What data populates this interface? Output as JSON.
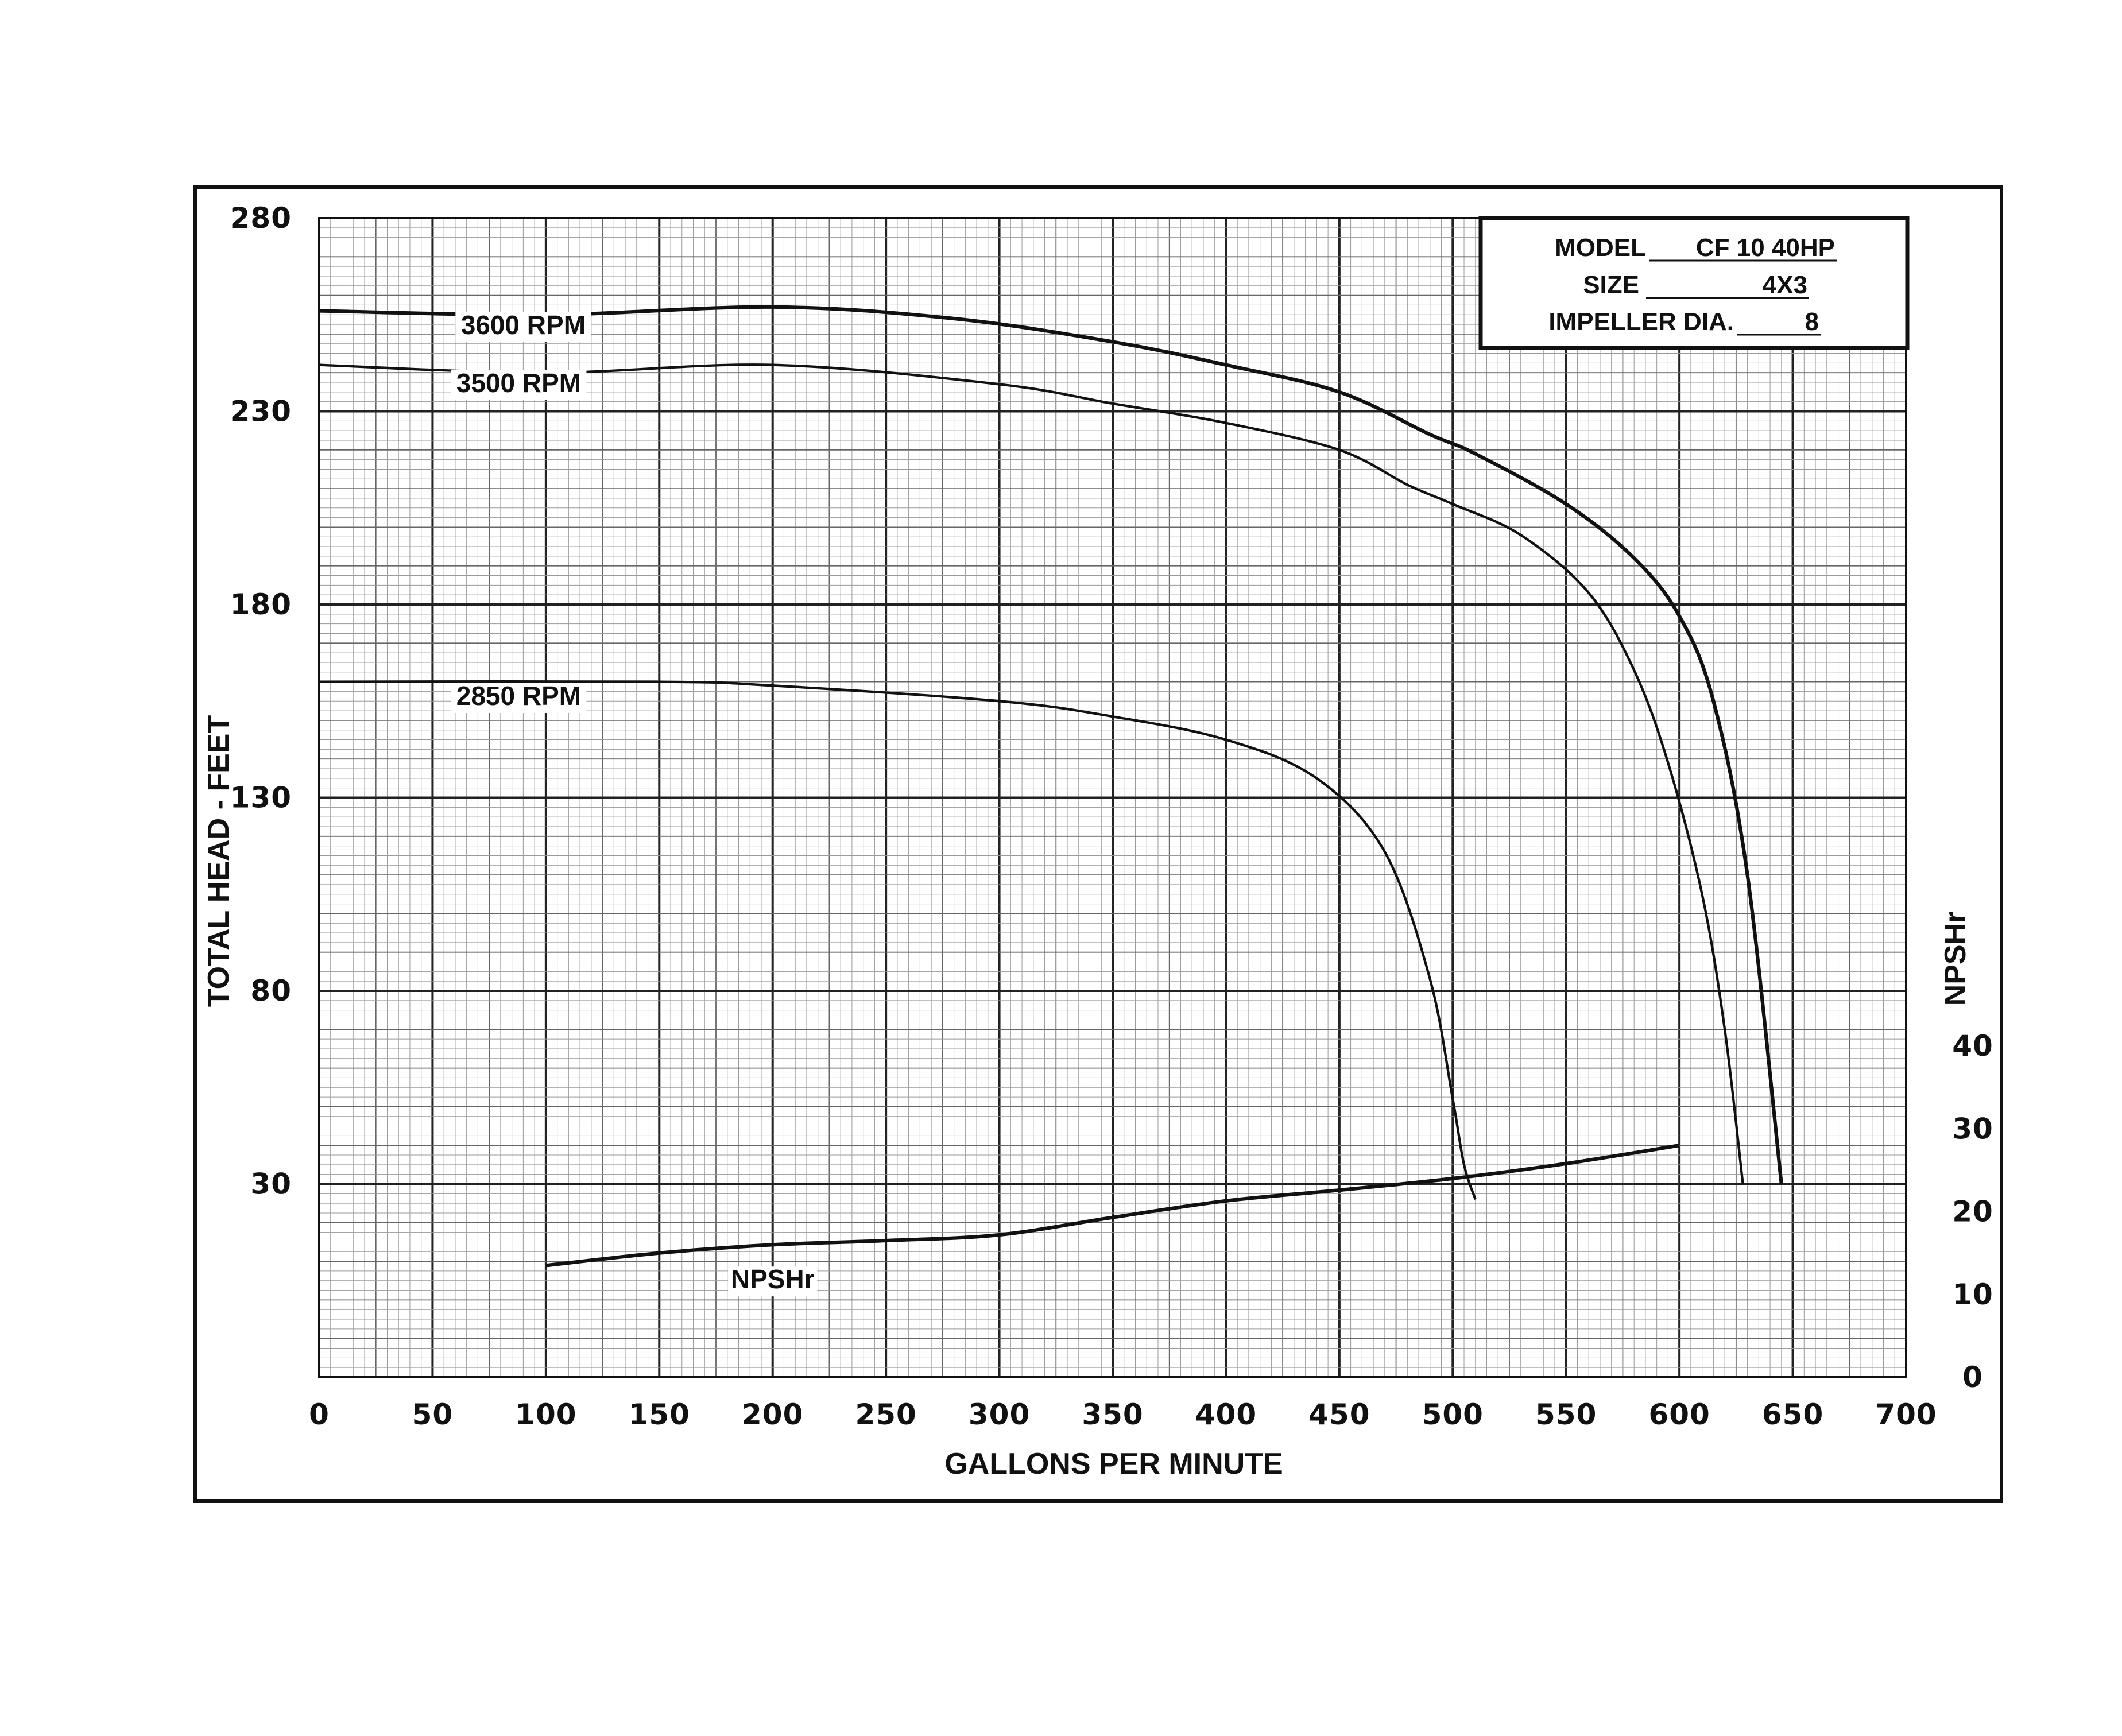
{
  "chart_data": {
    "type": "line",
    "xlabel": "GALLONS PER MINUTE",
    "ylabel": "TOTAL HEAD - FEET",
    "y2label": "NPSHr",
    "xlim": [
      0,
      700
    ],
    "ylim": [
      -20,
      280
    ],
    "y2lim": [
      0,
      140
    ],
    "x_ticks": [
      "0",
      "50",
      "100",
      "150",
      "200",
      "250",
      "300",
      "350",
      "400",
      "450",
      "500",
      "550",
      "600",
      "650",
      "700"
    ],
    "y_ticks": [
      "280",
      "230",
      "180",
      "130",
      "80",
      "30"
    ],
    "y2_ticks": [
      "0",
      "10",
      "20",
      "30",
      "40"
    ],
    "grid": true,
    "info_box": {
      "model_label": "MODEL",
      "model_value": "CF 10 40HP",
      "size_label": "SIZE",
      "size_value": "4X3",
      "impeller_label": "IMPELLER DIA.",
      "impeller_value": "8"
    },
    "series": [
      {
        "name": "3600 RPM",
        "axis": "head",
        "stroke": 2.6,
        "x": [
          0,
          100,
          200,
          280,
          350,
          400,
          450,
          490,
          510,
          550,
          580,
          600,
          615,
          630,
          645
        ],
        "y": [
          256,
          255,
          257,
          254,
          248,
          242,
          235,
          224,
          219,
          206,
          192,
          177,
          155,
          110,
          30
        ]
      },
      {
        "name": "3500 RPM",
        "axis": "head",
        "stroke": 1.8,
        "x": [
          0,
          100,
          200,
          300,
          350,
          400,
          450,
          480,
          500,
          530,
          560,
          580,
          595,
          610,
          620,
          628
        ],
        "y": [
          242,
          240,
          242,
          237,
          232,
          227,
          220,
          211,
          206,
          198,
          183,
          163,
          139,
          105,
          70,
          30
        ]
      },
      {
        "name": "2850 RPM",
        "axis": "head",
        "stroke": 1.8,
        "x": [
          0,
          150,
          200,
          300,
          350,
          400,
          440,
          470,
          490,
          500,
          505,
          510
        ],
        "y": [
          160,
          160,
          159,
          155,
          151,
          145,
          135,
          116,
          83,
          52,
          35,
          26
        ]
      },
      {
        "name": "NPSHr",
        "axis": "npshr",
        "stroke": 2.6,
        "x": [
          100,
          150,
          200,
          250,
          300,
          350,
          400,
          450,
          500,
          550,
          600
        ],
        "y": [
          13.5,
          15,
          16,
          16.5,
          17.2,
          19.3,
          21.3,
          22.6,
          24,
          25.8,
          28
        ]
      }
    ],
    "annotations": [
      {
        "text": "3600 RPM",
        "x": 90,
        "y": 250,
        "anchor": "middle"
      },
      {
        "text": "3500 RPM",
        "x": 88,
        "y": 235,
        "anchor": "middle"
      },
      {
        "text": "2850 RPM",
        "x": 88,
        "y": 154,
        "anchor": "middle"
      },
      {
        "text": "NPSHr",
        "x": 200,
        "y": 3,
        "anchor": "middle"
      }
    ]
  }
}
